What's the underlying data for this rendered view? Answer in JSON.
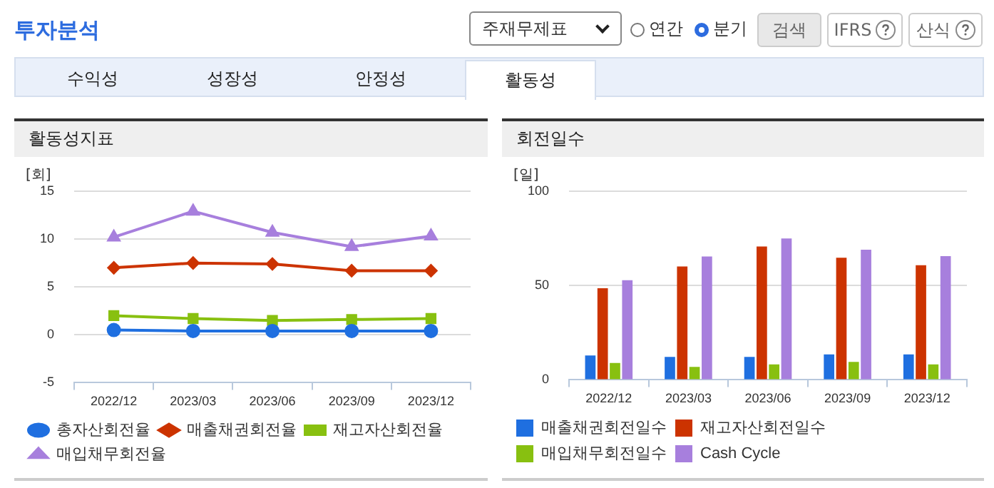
{
  "chart_data": [
    {
      "type": "line",
      "title": "활동성지표",
      "ylabel": "[회]",
      "annotations": [
        "투자분석",
        "주재무제표",
        "연간",
        "분기",
        "검색",
        "IFRS",
        "산식",
        "수익성",
        "성장성",
        "안정성",
        "활동성"
      ],
      "categories": [
        "2022/12",
        "2023/03",
        "2023/06",
        "2023/09",
        "2023/12"
      ],
      "series": [
        {
          "name": "총자산회전율",
          "color": "#1f6fe0",
          "marker": "circle",
          "values": [
            0.5,
            0.4,
            0.4,
            0.4,
            0.4
          ]
        },
        {
          "name": "매출채권회전율",
          "color": "#cc3300",
          "marker": "diamond",
          "values": [
            7.0,
            7.5,
            7.4,
            6.7,
            6.7
          ]
        },
        {
          "name": "재고자산회전율",
          "color": "#88c010",
          "marker": "square",
          "values": [
            2.0,
            1.7,
            1.5,
            1.6,
            1.7
          ]
        },
        {
          "name": "매입채무회전율",
          "color": "#a77fdd",
          "marker": "triangle",
          "values": [
            10.2,
            12.9,
            10.7,
            9.2,
            10.3
          ]
        }
      ],
      "ylim": [
        -5,
        15
      ],
      "yticks": [
        -5,
        0,
        5,
        10,
        15
      ],
      "grid": "y",
      "legend": "bottom"
    },
    {
      "type": "bar",
      "title": "회전일수",
      "ylabel": "[일]",
      "categories": [
        "2022/12",
        "2023/03",
        "2023/06",
        "2023/09",
        "2023/12"
      ],
      "series": [
        {
          "name": "매출채권회전일수",
          "color": "#1f6fe0",
          "values": [
            12.9,
            12.2,
            12.2,
            13.5,
            13.5
          ]
        },
        {
          "name": "재고자산회전일수",
          "color": "#cc3300",
          "values": [
            48.6,
            60.1,
            70.7,
            64.7,
            60.8
          ]
        },
        {
          "name": "매입채무회전일수",
          "color": "#88c010",
          "values": [
            8.9,
            6.9,
            8.2,
            9.5,
            8.2
          ]
        },
        {
          "name": "Cash Cycle",
          "color": "#a77fdd",
          "values": [
            52.8,
            65.4,
            74.9,
            69.0,
            65.6
          ]
        }
      ],
      "ylim": [
        0,
        100
      ],
      "yticks": [
        0,
        50,
        100
      ],
      "grid": "y",
      "legend": "bottom"
    }
  ]
}
